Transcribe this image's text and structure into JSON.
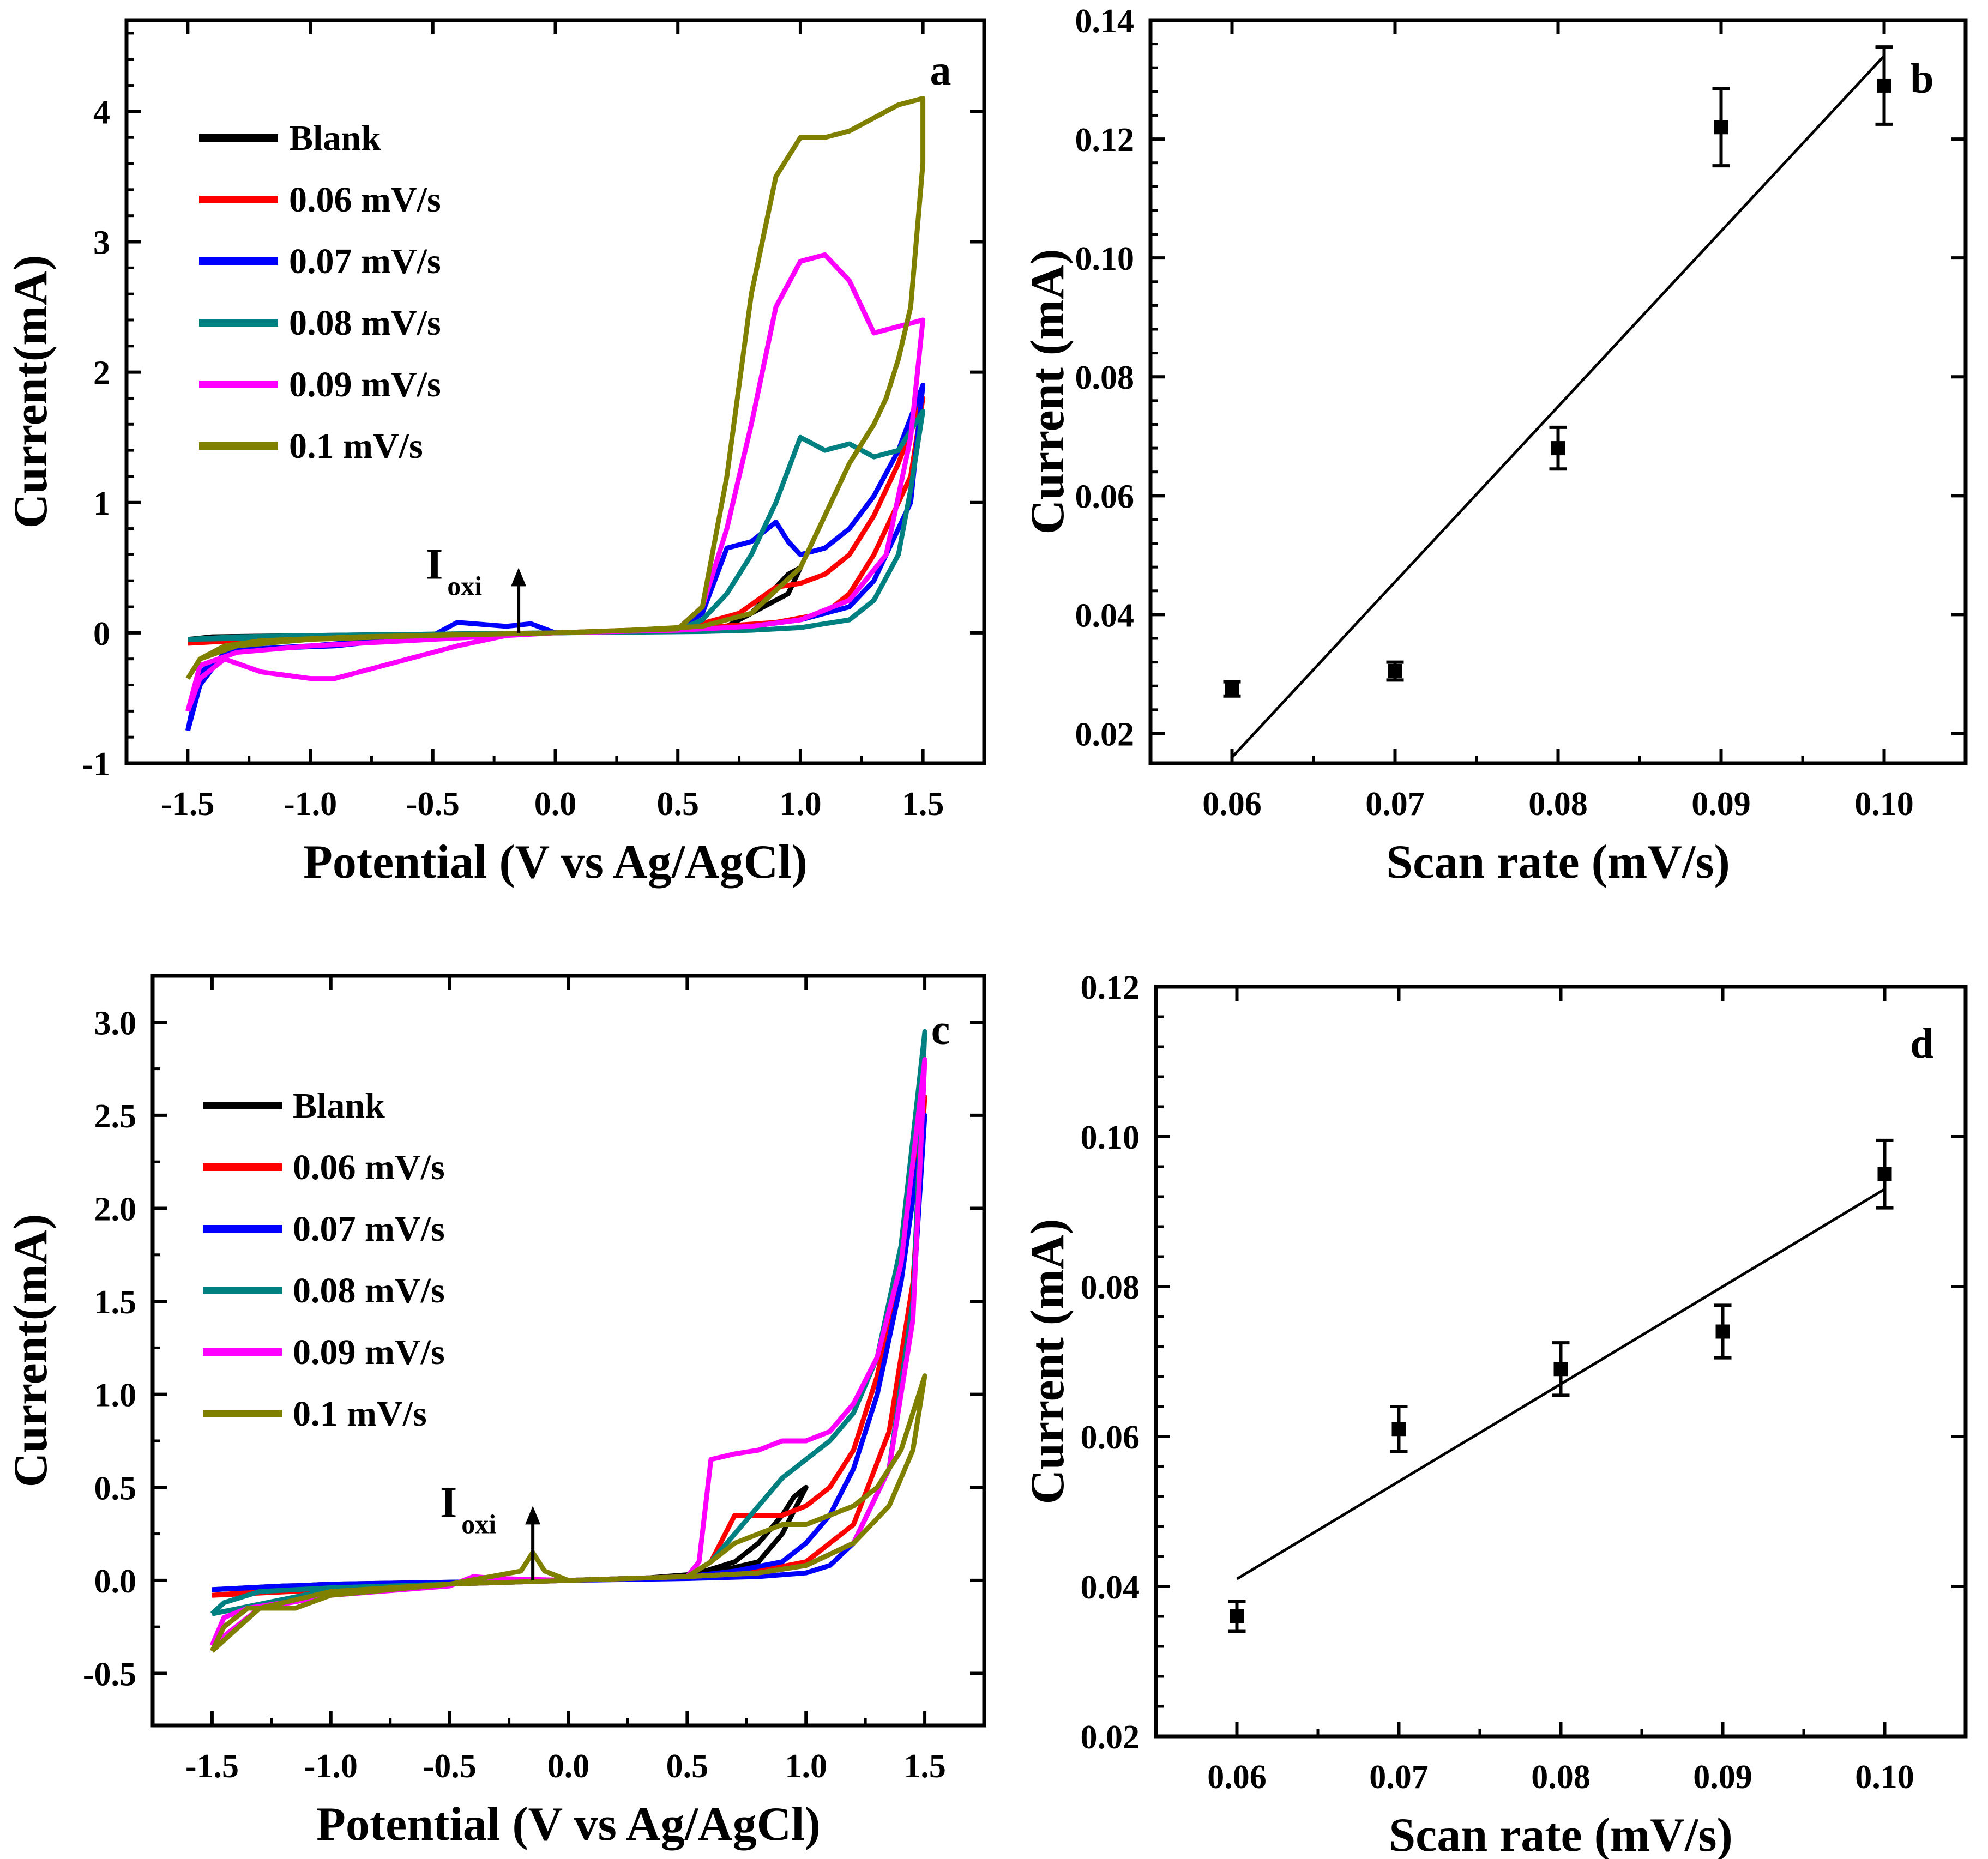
{
  "colors": {
    "Blank": "#000000",
    "0.06 mV/s": "#ff0000",
    "0.07 mV/s": "#0000ff",
    "0.08 mV/s": "#008080",
    "0.09 mV/s": "#ff00ff",
    "0.1 mV/s": "#808000"
  },
  "chart_data": [
    {
      "id": "a",
      "type": "line",
      "panel_label": "a",
      "xlabel": "Potential (V vs Ag/AgCl)",
      "ylabel": "Current(mA)",
      "xlim": [
        -1.75,
        1.75
      ],
      "ylim": [
        -1,
        4.7
      ],
      "xticks": [
        -1.5,
        -1.0,
        -0.5,
        0.0,
        0.5,
        1.0,
        1.5
      ],
      "xtick_labels": [
        "-1.5",
        "-1.0",
        "-0.5",
        "0.0",
        "0.5",
        "1.0",
        "1.5"
      ],
      "yticks": [
        -1,
        0,
        1,
        2,
        3,
        4
      ],
      "ytick_labels": [
        "-1",
        "0",
        "1",
        "2",
        "3",
        "4"
      ],
      "legend": [
        "Blank",
        "0.06 mV/s",
        "0.07 mV/s",
        "0.08 mV/s",
        "0.09 mV/s",
        "0.1 mV/s"
      ],
      "annotation": {
        "text": "I",
        "subscript": "oxi",
        "x": -0.15,
        "arrow_from": 0.0,
        "arrow_to": 0.5
      },
      "series": [
        {
          "name": "Blank",
          "x": [
            -1.5,
            -1.2,
            -0.8,
            -0.4,
            0,
            0.4,
            0.7,
            0.8,
            0.9,
            0.95,
            1.0,
            0.95,
            0.8,
            0.7,
            0.4,
            0,
            -0.5,
            -1,
            -1.4,
            -1.5
          ],
          "y": [
            -0.05,
            -0.03,
            -0.02,
            -0.01,
            0,
            0.01,
            0.05,
            0.15,
            0.35,
            0.45,
            0.5,
            0.3,
            0.15,
            0.05,
            0.02,
            0,
            -0.01,
            -0.02,
            -0.03,
            -0.05
          ]
        },
        {
          "name": "0.06 mV/s",
          "x": [
            -1.5,
            -1.2,
            -0.8,
            -0.3,
            0,
            0.5,
            0.75,
            0.9,
            1.0,
            1.1,
            1.2,
            1.3,
            1.4,
            1.5,
            1.45,
            1.3,
            1.2,
            1.1,
            0.9,
            0.6,
            0.3,
            0,
            -0.5,
            -1,
            -1.3,
            -1.5
          ],
          "y": [
            -0.08,
            -0.05,
            -0.03,
            -0.01,
            0,
            0.02,
            0.15,
            0.35,
            0.38,
            0.45,
            0.6,
            0.9,
            1.3,
            1.8,
            1.2,
            0.6,
            0.3,
            0.15,
            0.08,
            0.04,
            0.02,
            0,
            -0.02,
            -0.04,
            -0.06,
            -0.08
          ]
        },
        {
          "name": "0.07 mV/s",
          "x": [
            -1.5,
            -1.45,
            -1.35,
            -1.2,
            -0.9,
            -0.5,
            -0.4,
            -0.2,
            -0.1,
            0,
            0.5,
            0.6,
            0.7,
            0.8,
            0.9,
            0.95,
            1.0,
            1.1,
            1.2,
            1.3,
            1.4,
            1.5,
            1.45,
            1.3,
            1.2,
            1.0,
            0.8,
            0.6,
            0.3,
            0,
            -0.5,
            -1,
            -1.3,
            -1.45,
            -1.5
          ],
          "y": [
            -0.75,
            -0.4,
            -0.15,
            -0.12,
            -0.1,
            -0.02,
            0.08,
            0.05,
            0.07,
            0,
            0.02,
            0.15,
            0.65,
            0.7,
            0.85,
            0.7,
            0.6,
            0.65,
            0.8,
            1.05,
            1.4,
            1.9,
            1.0,
            0.4,
            0.2,
            0.1,
            0.05,
            0.02,
            0.01,
            0,
            -0.02,
            -0.1,
            -0.13,
            -0.3,
            -0.75
          ]
        },
        {
          "name": "0.08 mV/s",
          "x": [
            -1.5,
            -1.2,
            -0.8,
            -0.3,
            0,
            0.5,
            0.6,
            0.7,
            0.8,
            0.9,
            1.0,
            1.1,
            1.2,
            1.3,
            1.4,
            1.5,
            1.45,
            1.4,
            1.3,
            1.2,
            1.0,
            0.8,
            0.6,
            0.3,
            0,
            -0.5,
            -1,
            -1.3,
            -1.5
          ],
          "y": [
            -0.05,
            -0.04,
            -0.02,
            -0.01,
            0,
            0.02,
            0.1,
            0.3,
            0.6,
            1.0,
            1.5,
            1.4,
            1.45,
            1.35,
            1.4,
            1.7,
            1.1,
            0.6,
            0.25,
            0.1,
            0.04,
            0.02,
            0.01,
            0.005,
            0,
            -0.01,
            -0.02,
            -0.03,
            -0.05
          ]
        },
        {
          "name": "0.09 mV/s",
          "x": [
            -1.5,
            -1.45,
            -1.35,
            -1.2,
            -1.0,
            -0.9,
            -0.7,
            -0.4,
            -0.2,
            0,
            0.5,
            0.6,
            0.7,
            0.8,
            0.9,
            1.0,
            1.1,
            1.2,
            1.3,
            1.4,
            1.5,
            1.45,
            1.35,
            1.2,
            1.0,
            0.8,
            0.5,
            0,
            -0.5,
            -1,
            -1.3,
            -1.45,
            -1.5
          ],
          "y": [
            -0.6,
            -0.35,
            -0.2,
            -0.3,
            -0.35,
            -0.35,
            -0.25,
            -0.1,
            -0.02,
            0,
            0.03,
            0.2,
            0.8,
            1.6,
            2.5,
            2.85,
            2.9,
            2.7,
            2.3,
            2.35,
            2.4,
            1.5,
            0.6,
            0.25,
            0.1,
            0.05,
            0.02,
            0,
            -0.05,
            -0.1,
            -0.15,
            -0.25,
            -0.6
          ]
        },
        {
          "name": "0.1 mV/s",
          "x": [
            -1.5,
            -1.45,
            -1.35,
            -1.2,
            -0.8,
            -0.3,
            0,
            0.5,
            0.6,
            0.7,
            0.8,
            0.9,
            1.0,
            1.1,
            1.2,
            1.3,
            1.4,
            1.5,
            1.5,
            1.45,
            1.4,
            1.35,
            1.3,
            1.2,
            1.1,
            1.0,
            0.8,
            0.6,
            0.3,
            0,
            -0.5,
            -1,
            -1.3,
            -1.45,
            -1.5
          ],
          "y": [
            -0.35,
            -0.2,
            -0.1,
            -0.06,
            -0.03,
            -0.01,
            0,
            0.03,
            0.2,
            1.2,
            2.6,
            3.5,
            3.8,
            3.8,
            3.85,
            3.95,
            4.05,
            4.1,
            3.6,
            2.5,
            2.1,
            1.8,
            1.6,
            1.3,
            0.9,
            0.5,
            0.15,
            0.05,
            0.02,
            0,
            -0.02,
            -0.05,
            -0.1,
            -0.2,
            -0.35
          ]
        }
      ]
    },
    {
      "id": "b",
      "type": "scatter",
      "panel_label": "b",
      "xlabel": "Scan rate (mV/s)",
      "ylabel": "Current (mA)",
      "xlim": [
        0.055,
        0.105
      ],
      "ylim": [
        0.015,
        0.14
      ],
      "xticks": [
        0.06,
        0.07,
        0.08,
        0.09,
        0.1
      ],
      "xtick_labels": [
        "0.06",
        "0.07",
        "0.08",
        "0.09",
        "0.10"
      ],
      "yticks": [
        0.02,
        0.04,
        0.06,
        0.08,
        0.1,
        0.12,
        0.14
      ],
      "ytick_labels": [
        "0.02",
        "0.04",
        "0.06",
        "0.08",
        "0.10",
        "0.12",
        "0.14"
      ],
      "points": {
        "x": [
          0.06,
          0.07,
          0.08,
          0.09,
          0.1
        ],
        "y": [
          0.0275,
          0.0305,
          0.068,
          0.122,
          0.129
        ],
        "err": [
          0.0012,
          0.0015,
          0.0035,
          0.0065,
          0.0065
        ]
      },
      "fit_line": {
        "x": [
          0.06,
          0.1
        ],
        "y": [
          0.016,
          0.134
        ]
      }
    },
    {
      "id": "c",
      "type": "line",
      "panel_label": "c",
      "xlabel": "Potential (V vs Ag/AgCl)",
      "ylabel": "Current(mA)",
      "xlim": [
        -1.75,
        1.75
      ],
      "ylim": [
        -0.78,
        3.25
      ],
      "xticks": [
        -1.5,
        -1.0,
        -0.5,
        0.0,
        0.5,
        1.0,
        1.5
      ],
      "xtick_labels": [
        "-1.5",
        "-1.0",
        "-0.5",
        "0.0",
        "0.5",
        "1.0",
        "1.5"
      ],
      "yticks": [
        -0.5,
        0.0,
        0.5,
        1.0,
        1.5,
        2.0,
        2.5,
        3.0
      ],
      "ytick_labels": [
        "-0.5",
        "0.0",
        "0.5",
        "1.0",
        "1.5",
        "2.0",
        "2.5",
        "3.0"
      ],
      "legend": [
        "Blank",
        "0.06 mV/s",
        "0.07 mV/s",
        "0.08 mV/s",
        "0.09 mV/s",
        "0.1 mV/s"
      ],
      "annotation": {
        "text": "I",
        "subscript": "oxi",
        "x": -0.15,
        "arrow_from": 0.0,
        "arrow_to": 0.4
      },
      "series": [
        {
          "name": "Blank",
          "x": [
            -1.5,
            -1.2,
            -0.8,
            -0.3,
            0,
            0.5,
            0.7,
            0.8,
            0.9,
            0.95,
            1.0,
            0.9,
            0.8,
            0.6,
            0.3,
            0,
            -0.5,
            -1,
            -1.5
          ],
          "y": [
            -0.05,
            -0.03,
            -0.02,
            -0.01,
            0,
            0.02,
            0.1,
            0.2,
            0.35,
            0.45,
            0.5,
            0.25,
            0.1,
            0.04,
            0.01,
            0,
            -0.01,
            -0.02,
            -0.05
          ]
        },
        {
          "name": "0.06 mV/s",
          "x": [
            -1.5,
            -1.2,
            -0.8,
            -0.3,
            0,
            0.5,
            0.6,
            0.7,
            0.8,
            0.9,
            1.0,
            1.1,
            1.2,
            1.3,
            1.4,
            1.5,
            1.45,
            1.35,
            1.2,
            1.0,
            0.8,
            0.5,
            0,
            -0.5,
            -1,
            -1.5
          ],
          "y": [
            -0.08,
            -0.05,
            -0.03,
            -0.01,
            0,
            0.02,
            0.1,
            0.35,
            0.35,
            0.35,
            0.4,
            0.5,
            0.7,
            1.1,
            1.7,
            2.6,
            1.6,
            0.8,
            0.3,
            0.1,
            0.05,
            0.02,
            0,
            -0.02,
            -0.05,
            -0.08
          ]
        },
        {
          "name": "0.07 mV/s",
          "x": [
            -1.5,
            -1.2,
            -0.8,
            -0.3,
            0,
            0.5,
            0.7,
            0.9,
            1.0,
            1.1,
            1.2,
            1.3,
            1.4,
            1.5,
            1.45,
            1.35,
            1.2,
            1.1,
            1.0,
            0.8,
            0.5,
            0,
            -0.5,
            -1,
            -1.5
          ],
          "y": [
            -0.05,
            -0.03,
            -0.02,
            -0.01,
            0,
            0.02,
            0.05,
            0.1,
            0.2,
            0.35,
            0.6,
            1.0,
            1.6,
            2.5,
            1.5,
            0.6,
            0.2,
            0.08,
            0.04,
            0.02,
            0.01,
            0,
            -0.01,
            -0.02,
            -0.05
          ]
        },
        {
          "name": "0.08 mV/s",
          "x": [
            -1.5,
            -1.45,
            -1.3,
            -1.0,
            -0.5,
            0,
            0.5,
            0.6,
            0.7,
            0.8,
            0.9,
            1.0,
            1.1,
            1.2,
            1.3,
            1.4,
            1.5,
            1.45,
            1.35,
            1.2,
            1.0,
            0.8,
            0.5,
            0,
            -0.5,
            -1,
            -1.5
          ],
          "y": [
            -0.18,
            -0.12,
            -0.06,
            -0.04,
            -0.02,
            0,
            0.02,
            0.1,
            0.25,
            0.4,
            0.55,
            0.65,
            0.75,
            0.9,
            1.2,
            1.8,
            2.95,
            1.5,
            0.6,
            0.2,
            0.08,
            0.04,
            0.02,
            0,
            -0.02,
            -0.05,
            -0.18
          ]
        },
        {
          "name": "0.09 mV/s",
          "x": [
            -1.5,
            -1.45,
            -1.35,
            -1.2,
            -1.0,
            -0.5,
            -0.4,
            -0.3,
            0,
            0.5,
            0.55,
            0.6,
            0.7,
            0.8,
            0.9,
            1.0,
            1.1,
            1.2,
            1.3,
            1.4,
            1.5,
            1.45,
            1.35,
            1.2,
            1.0,
            0.8,
            0.5,
            0,
            -0.5,
            -1,
            -1.3,
            -1.5
          ],
          "y": [
            -0.35,
            -0.2,
            -0.15,
            -0.12,
            -0.08,
            -0.03,
            0.02,
            0.01,
            0,
            0.02,
            0.1,
            0.65,
            0.68,
            0.7,
            0.75,
            0.75,
            0.8,
            0.95,
            1.2,
            1.7,
            2.8,
            1.4,
            0.6,
            0.2,
            0.08,
            0.04,
            0.02,
            0,
            -0.02,
            -0.08,
            -0.15,
            -0.35
          ]
        },
        {
          "name": "0.1 mV/s",
          "x": [
            -1.5,
            -1.45,
            -1.35,
            -1.15,
            -1.0,
            -0.5,
            -0.2,
            -0.15,
            -0.1,
            0,
            0.5,
            0.6,
            0.7,
            0.8,
            0.9,
            1.0,
            1.1,
            1.2,
            1.3,
            1.4,
            1.5,
            1.45,
            1.35,
            1.2,
            1.0,
            0.8,
            0.5,
            0,
            -0.5,
            -1,
            -1.3,
            -1.5
          ],
          "y": [
            -0.38,
            -0.25,
            -0.15,
            -0.15,
            -0.08,
            -0.02,
            0.05,
            0.15,
            0.05,
            0,
            0.02,
            0.1,
            0.2,
            0.25,
            0.3,
            0.3,
            0.35,
            0.4,
            0.5,
            0.7,
            1.1,
            0.7,
            0.4,
            0.2,
            0.08,
            0.04,
            0.02,
            0,
            -0.02,
            -0.06,
            -0.15,
            -0.38
          ]
        }
      ]
    },
    {
      "id": "d",
      "type": "scatter",
      "panel_label": "d",
      "xlabel": "Scan rate (mV/s)",
      "ylabel": "Current (mA)",
      "xlim": [
        0.055,
        0.105
      ],
      "ylim": [
        0.02,
        0.12
      ],
      "xticks": [
        0.06,
        0.07,
        0.08,
        0.09,
        0.1
      ],
      "xtick_labels": [
        "0.06",
        "0.07",
        "0.08",
        "0.09",
        "0.10"
      ],
      "yticks": [
        0.02,
        0.04,
        0.06,
        0.08,
        0.1,
        0.12
      ],
      "ytick_labels": [
        "0.02",
        "0.04",
        "0.06",
        "0.08",
        "0.10",
        "0.12"
      ],
      "points": {
        "x": [
          0.06,
          0.07,
          0.08,
          0.09,
          0.1
        ],
        "y": [
          0.036,
          0.061,
          0.069,
          0.074,
          0.095
        ],
        "err": [
          0.002,
          0.003,
          0.0035,
          0.0035,
          0.0045
        ]
      },
      "fit_line": {
        "x": [
          0.06,
          0.1
        ],
        "y": [
          0.041,
          0.093
        ]
      }
    }
  ]
}
